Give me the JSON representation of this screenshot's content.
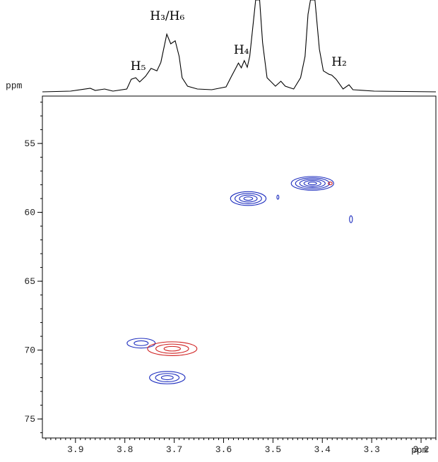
{
  "chart_data": {
    "type": "contour",
    "xlabel": "ppm",
    "ylabel": "ppm",
    "xlim": [
      3.967,
      3.17
    ],
    "ylim": [
      51.56,
      76.38
    ],
    "xticks": [
      3.9,
      3.8,
      3.7,
      3.6,
      3.5,
      3.4,
      3.3,
      3.2
    ],
    "yticks": [
      55,
      60,
      65,
      70,
      75
    ],
    "projection": {
      "color": "#000000",
      "ylim": [
        0,
        100
      ],
      "x": [
        3.967,
        3.91,
        3.87,
        3.86,
        3.841,
        3.824,
        3.796,
        3.787,
        3.778,
        3.77,
        3.758,
        3.747,
        3.735,
        3.727,
        3.715,
        3.707,
        3.698,
        3.69,
        3.684,
        3.673,
        3.653,
        3.624,
        3.595,
        3.584,
        3.575,
        3.57,
        3.564,
        3.558,
        3.552,
        3.547,
        3.541,
        3.535,
        3.527,
        3.521,
        3.512,
        3.495,
        3.484,
        3.475,
        3.458,
        3.444,
        3.435,
        3.429,
        3.424,
        3.415,
        3.406,
        3.398,
        3.386,
        3.381,
        3.372,
        3.358,
        3.346,
        3.338,
        3.295,
        3.17
      ],
      "values": [
        0,
        1.2,
        5.9,
        2.4,
        4.7,
        1.2,
        4.7,
        21,
        23.5,
        16.5,
        26,
        39,
        35,
        49,
        96,
        80,
        85,
        59,
        23.5,
        9.4,
        4.7,
        3.5,
        8.2,
        26,
        40,
        48,
        40,
        52,
        41,
        59,
        106,
        153,
        153,
        82,
        23.5,
        9.4,
        17.6,
        9.4,
        4.7,
        23.5,
        59,
        129,
        153,
        153,
        71,
        35,
        29,
        28,
        21,
        4.7,
        11.8,
        3.5,
        1.2,
        0
      ]
    },
    "annotations": [
      {
        "text": "H₅",
        "x": 3.773,
        "y": 43.5
      },
      {
        "text": "H₃/H₆",
        "x": 3.714,
        "y": 127
      },
      {
        "text": "H₄",
        "x": 3.564,
        "y": 70.6
      },
      {
        "text": "H₂",
        "x": 3.366,
        "y": 50.6
      }
    ],
    "peaks": [
      {
        "x": 3.55,
        "y": 59.0,
        "wx": 0.072,
        "wy": 1.0,
        "levels": 4,
        "color": "#1f2fbf"
      },
      {
        "x": 3.42,
        "y": 57.9,
        "wx": 0.086,
        "wy": 1.0,
        "levels": 5,
        "color": "#1f2fbf"
      },
      {
        "x": 3.384,
        "y": 57.9,
        "wx": 0.008,
        "wy": 0.2,
        "levels": 1,
        "color": "#d02020"
      },
      {
        "x": 3.49,
        "y": 58.9,
        "wx": 0.004,
        "wy": 0.3,
        "levels": 1,
        "color": "#1f2fbf"
      },
      {
        "x": 3.342,
        "y": 60.5,
        "wx": 0.006,
        "wy": 0.5,
        "levels": 1,
        "color": "#1f2fbf"
      },
      {
        "x": 3.767,
        "y": 69.5,
        "wx": 0.057,
        "wy": 0.7,
        "levels": 2,
        "color": "#1f2fbf"
      },
      {
        "x": 3.704,
        "y": 69.9,
        "wx": 0.1,
        "wy": 1.0,
        "levels": 3,
        "color": "#d02020"
      },
      {
        "x": 3.714,
        "y": 72.0,
        "wx": 0.072,
        "wy": 0.9,
        "levels": 3,
        "color": "#1f2fbf"
      }
    ]
  }
}
